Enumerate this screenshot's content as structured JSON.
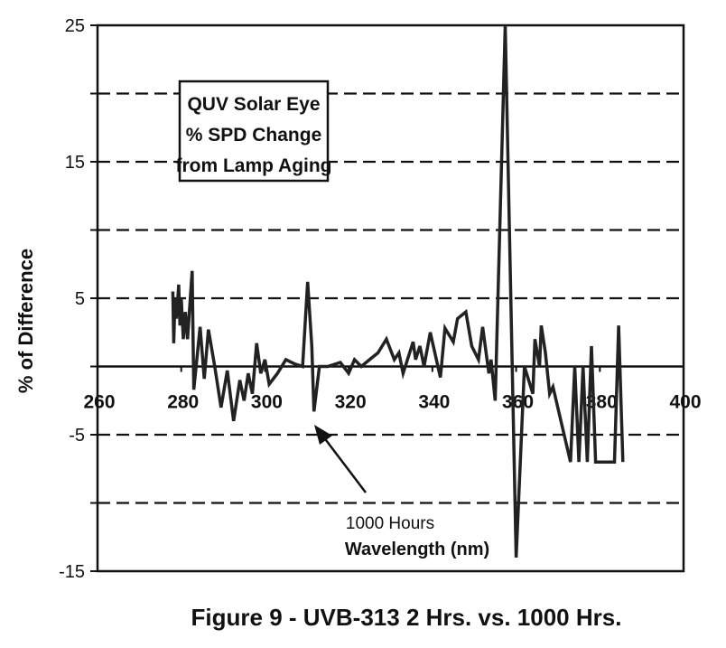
{
  "chart_data": {
    "type": "line",
    "title": "QUV Solar Eye\n% SPD Change\nfrom Lamp Aging",
    "title_lines": [
      "QUV Solar Eye",
      "% SPD Change",
      "from Lamp Aging"
    ],
    "caption": "Figure 9 - UVB-313 2 Hrs. vs. 1000 Hrs.",
    "xlabel": "Wavelength (nm)",
    "ylabel": "% of Difference",
    "annotation": "1000 Hours",
    "xlim": [
      260,
      400
    ],
    "ylim": [
      -15,
      25
    ],
    "x_ticks": [
      260,
      280,
      300,
      320,
      340,
      360,
      380,
      400
    ],
    "y_ticks": [
      25,
      15,
      5,
      -5,
      -15
    ],
    "grid": {
      "horizontal_dashed": [
        20,
        15,
        10,
        5,
        -5,
        -10
      ],
      "zero_line": "solid"
    },
    "legend": "none",
    "line_color": "#222222",
    "series": [
      {
        "x": [
          278,
          278.2,
          278.5,
          278.8,
          279.1,
          279.4,
          279.7,
          280,
          280.5,
          281,
          281.5,
          282.6,
          283,
          284.5,
          285.5,
          286.5,
          288,
          289.5,
          291,
          292.5,
          294,
          295,
          296,
          297,
          298,
          299,
          300,
          301,
          303,
          305,
          307,
          309,
          310.2,
          311.2,
          311.7,
          313,
          315,
          318,
          320,
          321.4,
          323,
          325,
          327,
          329,
          330.9,
          332,
          333,
          335.4,
          336,
          337,
          338,
          339.5,
          341.9,
          343,
          345,
          346,
          348,
          349.4,
          351,
          352,
          353.5,
          354,
          355,
          357.4,
          360,
          362,
          364,
          364.5,
          365.6,
          366,
          367,
          368,
          368.8,
          373,
          374,
          375,
          376,
          377,
          378,
          379,
          380,
          382,
          383.5,
          384.5,
          385.5
        ],
        "y": [
          5.5,
          1.7,
          5,
          3.5,
          4.5,
          6,
          3,
          5,
          2,
          4,
          2,
          7,
          -1.7,
          2.9,
          -0.9,
          2.7,
          0,
          -3,
          -0.3,
          -4,
          -1,
          -2.5,
          -0.5,
          -2,
          1.7,
          -0.5,
          0.5,
          -1.3,
          -0.5,
          0.5,
          0.2,
          0,
          6.2,
          1.5,
          -3.3,
          0,
          0,
          0.3,
          -0.5,
          0.5,
          0,
          0.5,
          1,
          2,
          0.5,
          1,
          -0.5,
          1.8,
          0.5,
          1.5,
          0,
          2.5,
          -0.8,
          2.8,
          1.8,
          3.5,
          4,
          1.5,
          0.5,
          2.9,
          -0.5,
          0.5,
          -2.5,
          25,
          -14,
          0,
          -2,
          2,
          0,
          3,
          1,
          -2,
          -1.5,
          -7,
          0,
          -7,
          0,
          -7,
          1.5,
          -7,
          -7,
          -7,
          -7,
          3,
          -7
        ]
      }
    ]
  }
}
